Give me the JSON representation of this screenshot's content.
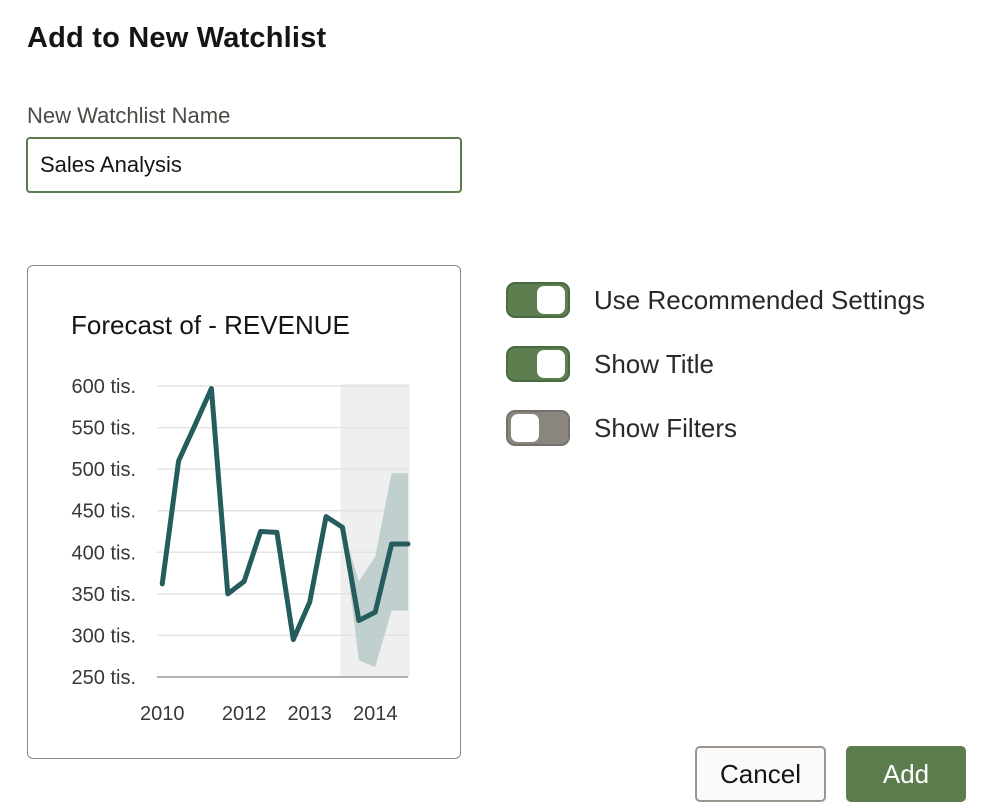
{
  "dialog": {
    "title": "Add to New Watchlist",
    "name_label": "New Watchlist Name",
    "name_value": "Sales Analysis",
    "name_placeholder": ""
  },
  "toggles": [
    {
      "label": "Use Recommended Settings",
      "on": true
    },
    {
      "label": "Show Title",
      "on": true
    },
    {
      "label": "Show Filters",
      "on": false
    }
  ],
  "buttons": {
    "cancel": "Cancel",
    "add": "Add"
  },
  "colors": {
    "accent": "#5d7d4f",
    "line": "#255c5e",
    "forecast_band": "#b9ccca",
    "forecast_region": "#efefef",
    "toggle_off": "#8b857f"
  },
  "chart_data": {
    "type": "line",
    "title": "Forecast of - REVENUE",
    "y_ticks": [
      "600 tis.",
      "550 tis.",
      "500 tis.",
      "450 tis.",
      "400 tis.",
      "350 tis.",
      "300 tis.",
      "250 tis."
    ],
    "y_tick_values": [
      600,
      550,
      500,
      450,
      400,
      350,
      300,
      250
    ],
    "x_ticks": [
      "2010",
      "2012",
      "2013",
      "2014"
    ],
    "x_tick_values": [
      2010.0,
      2011.25,
      2012.25,
      2013.25
    ],
    "x_range": [
      2009.92,
      2013.75
    ],
    "ylim": [
      250,
      600
    ],
    "series": [
      {
        "name": "REVENUE",
        "x": [
          2010.0,
          2010.25,
          2010.5,
          2010.75,
          2011.0,
          2011.25,
          2011.5,
          2011.75,
          2012.0,
          2012.25,
          2012.5,
          2012.75,
          2013.0,
          2013.25,
          2013.5,
          2013.75
        ],
        "y": [
          362,
          510,
          553,
          597,
          350,
          365,
          425,
          424,
          295,
          340,
          443,
          430,
          318,
          328,
          410,
          410
        ]
      }
    ],
    "forecast": {
      "start": 3,
      "x": [
        2012.75,
        2013.0,
        2013.25,
        2013.5,
        2013.75
      ],
      "upper": [
        430,
        365,
        395,
        495,
        495
      ],
      "lower": [
        430,
        270,
        262,
        330,
        330
      ],
      "region_start": 2012.75,
      "region_end": 2013.75
    }
  }
}
